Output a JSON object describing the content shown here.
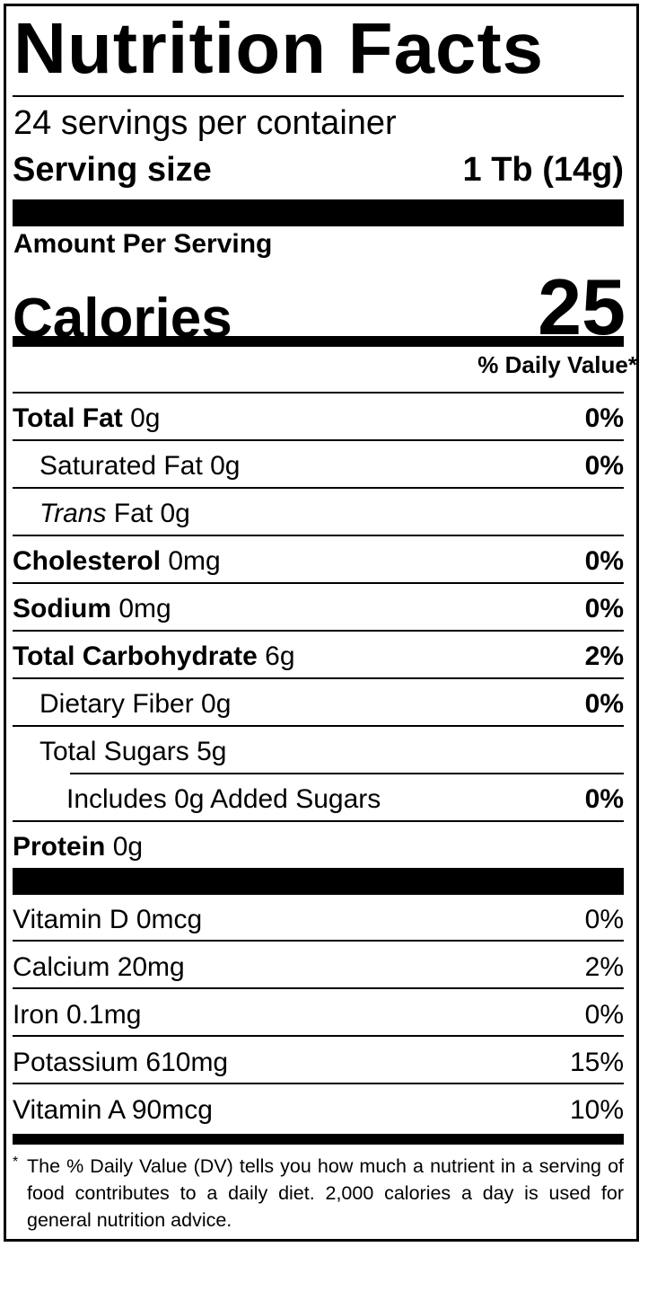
{
  "title": "Nutrition Facts",
  "servings_per_container": "24 servings per container",
  "serving_size": {
    "label": "Serving size",
    "value": "1 Tb (14g)"
  },
  "amount_per_serving": "Amount Per Serving",
  "calories": {
    "label": "Calories",
    "value": "25"
  },
  "daily_value_header": "% Daily Value*",
  "nutrients": [
    {
      "bold": "Total Fat",
      "rest": " 0g",
      "pct": "0%"
    },
    {
      "bold": "",
      "rest": "Saturated Fat 0g",
      "pct": "0%"
    },
    {
      "italic": "Trans",
      "rest": " Fat 0g",
      "pct": ""
    },
    {
      "bold": "Cholesterol",
      "rest": " 0mg",
      "pct": "0%"
    },
    {
      "bold": "Sodium",
      "rest": " 0mg",
      "pct": "0%"
    },
    {
      "bold": "Total Carbohydrate",
      "rest": " 6g",
      "pct": "2%"
    },
    {
      "bold": "",
      "rest": "Dietary Fiber 0g",
      "pct": "0%"
    },
    {
      "bold": "",
      "rest": "Total Sugars 5g",
      "pct": ""
    },
    {
      "bold": "",
      "rest": "Includes 0g Added Sugars",
      "pct": "0%"
    },
    {
      "bold": "Protein",
      "rest": " 0g",
      "pct": ""
    }
  ],
  "vitamins": [
    {
      "name": "Vitamin D 0mcg",
      "pct": "0%"
    },
    {
      "name": "Calcium 20mg",
      "pct": "2%"
    },
    {
      "name": "Iron 0.1mg",
      "pct": "0%"
    },
    {
      "name": "Potassium 610mg",
      "pct": "15%"
    },
    {
      "name": "Vitamin A 90mcg",
      "pct": "10%"
    }
  ],
  "footnote": {
    "star": "*",
    "text": "The % Daily Value (DV) tells you how much a nutrient in a serving of food contributes to a daily diet. 2,000 calories a day is used for general nutrition advice."
  }
}
